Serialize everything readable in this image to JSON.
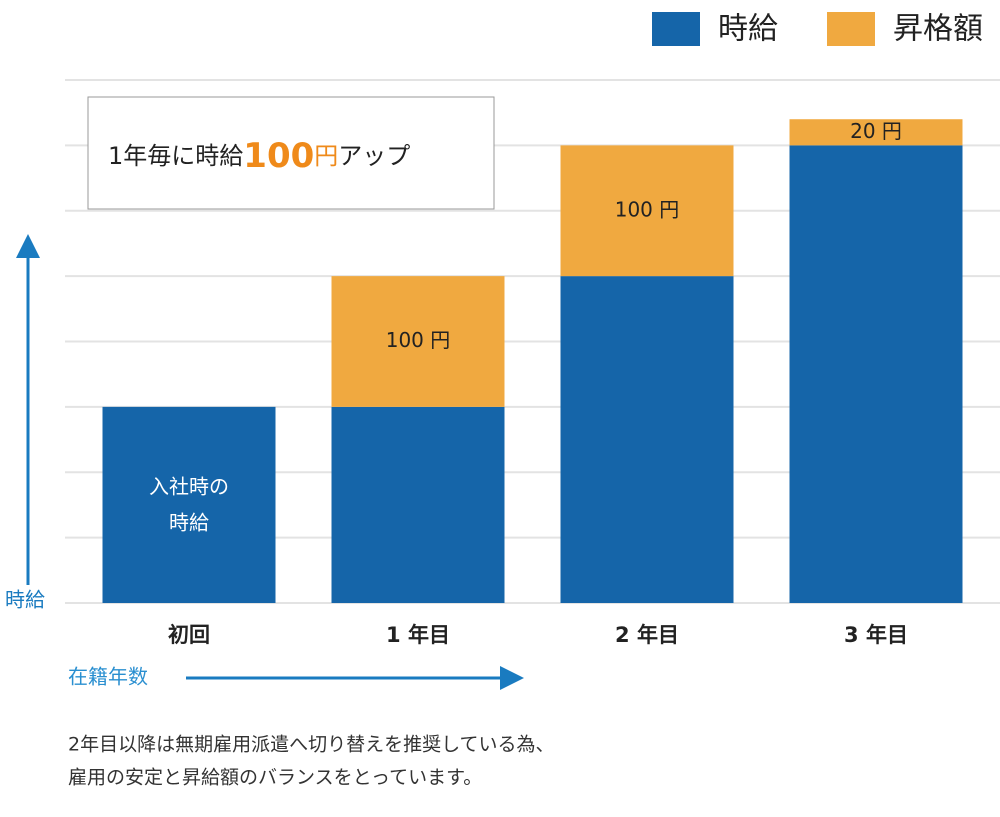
{
  "chart_data": {
    "type": "stacked_bar",
    "categories": [
      "初回",
      "1 年目",
      "2 年目",
      "3 年目"
    ],
    "series": [
      {
        "name": "時給",
        "color": "#1565a9",
        "values": [
          150,
          150,
          250,
          350
        ]
      },
      {
        "name": "昇格額",
        "color": "#f0a940",
        "values": [
          null,
          100,
          100,
          20
        ],
        "value_labels": [
          null,
          "100 円",
          "100 円",
          "20 円"
        ]
      }
    ],
    "ylim": [
      0,
      400
    ],
    "yticks": [
      0,
      50,
      100,
      150,
      200,
      250,
      300,
      350,
      400
    ],
    "grid": true,
    "ylabel": "時給",
    "xlabel": "在籍年数",
    "bar_annotation": [
      "入社時の",
      "時給"
    ],
    "callout": [
      "1年毎に時給",
      "100",
      "円",
      "アップ"
    ],
    "footnote": [
      "2年目以降は無期雇用派遣へ切り替えを推奨している為、",
      "雇用の安定と昇給額のバランスをとっています。"
    ]
  }
}
